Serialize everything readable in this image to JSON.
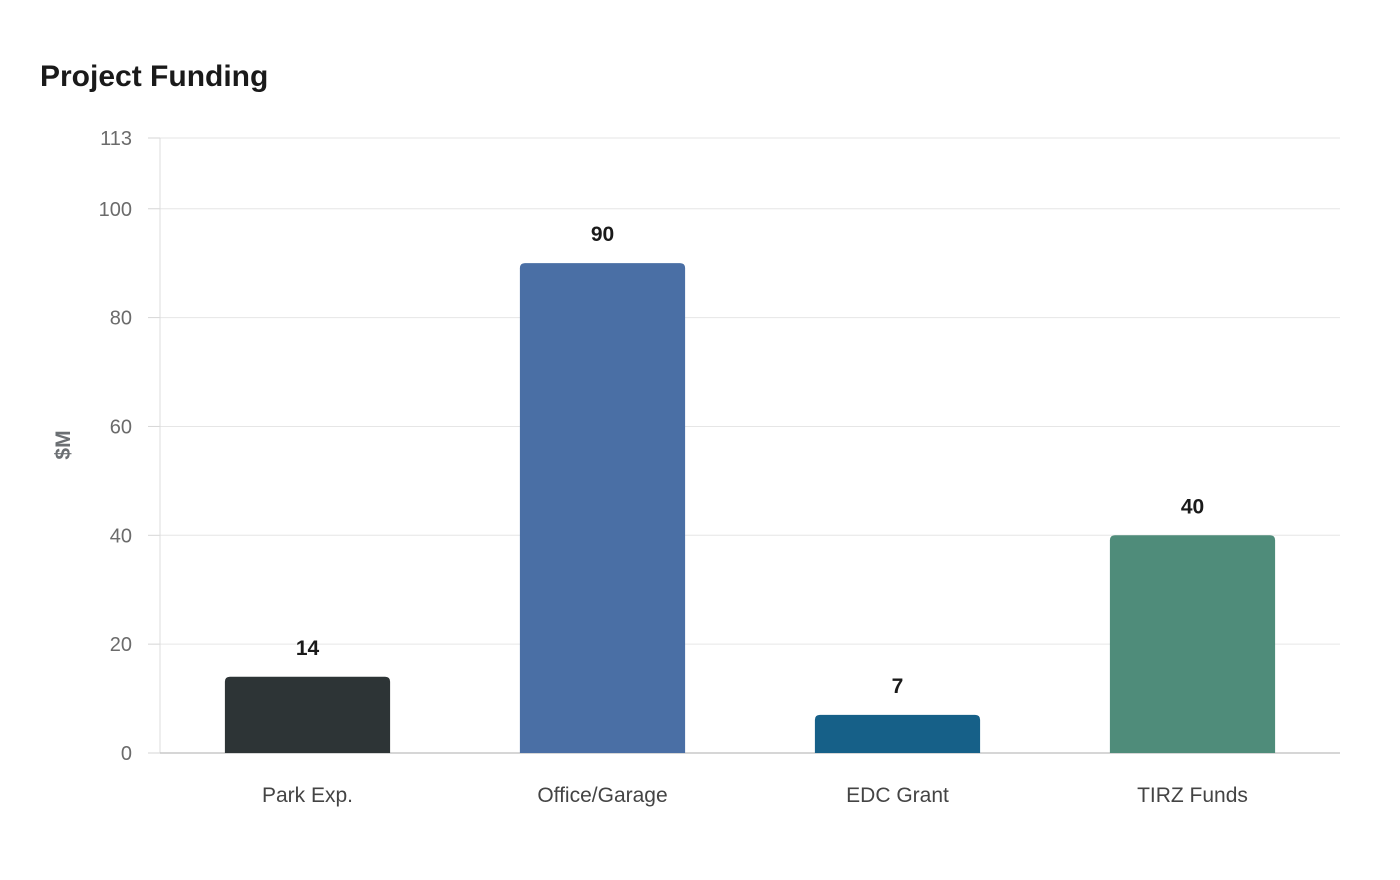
{
  "chart_data": {
    "type": "bar",
    "title": "Project Funding",
    "xlabel": "",
    "ylabel": "$M",
    "categories": [
      "Park Exp.",
      "Office/Garage",
      "EDC Grant",
      "TIRZ Funds"
    ],
    "values": [
      14,
      90,
      7,
      40
    ],
    "colors": [
      "#2d3436",
      "#4a6fa5",
      "#166088",
      "#4f8c7a"
    ],
    "ylim": [
      0,
      113
    ],
    "yticks": [
      0,
      20,
      40,
      60,
      80,
      100,
      113
    ],
    "grid": true,
    "legend": "none"
  }
}
